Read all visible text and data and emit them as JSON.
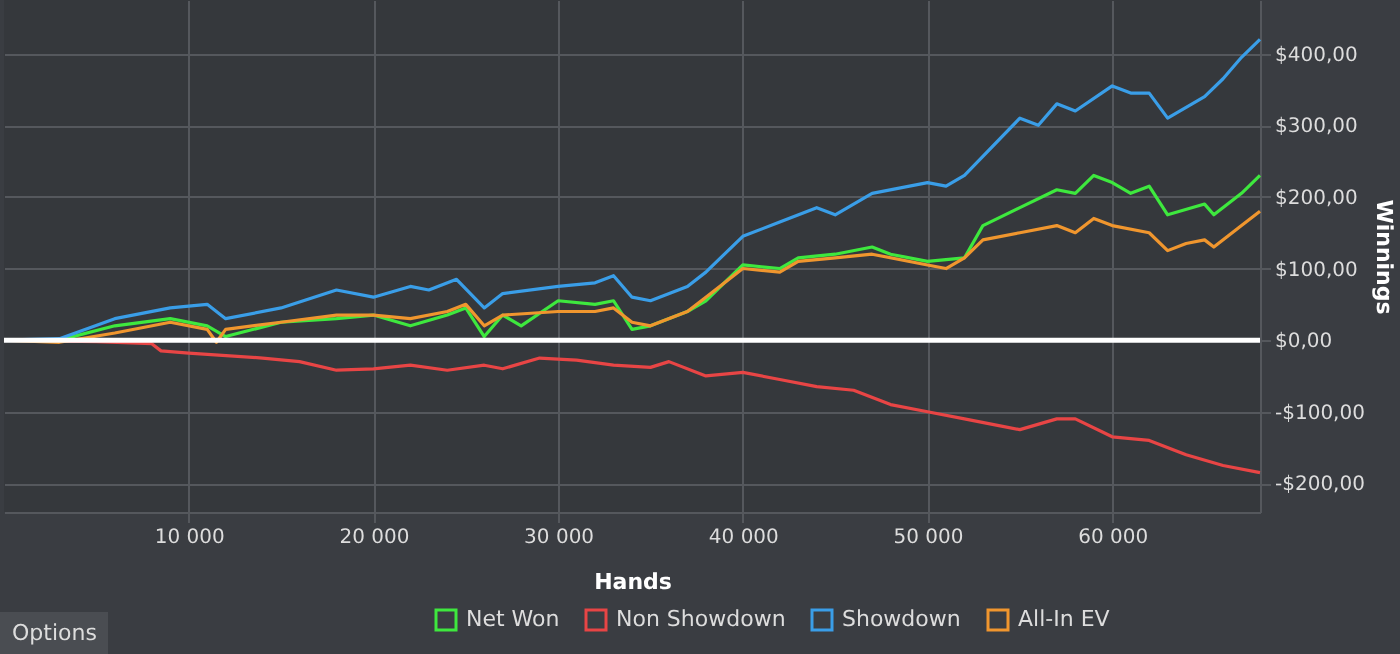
{
  "chart_data": {
    "type": "line",
    "xlabel": "Hands",
    "ylabel": "Winnings",
    "annotations": [
      "Options"
    ],
    "xlim": [
      0,
      68000
    ],
    "xticks": [
      {
        "value": 10000,
        "label": "10 000"
      },
      {
        "value": 20000,
        "label": "20 000"
      },
      {
        "value": 30000,
        "label": "30 000"
      },
      {
        "value": 40000,
        "label": "40 000"
      },
      {
        "value": 50000,
        "label": "50 000"
      },
      {
        "value": 60000,
        "label": "60 000"
      }
    ],
    "ylim": [
      -240,
      475
    ],
    "yticks": [
      {
        "value": -200,
        "label": "-$200,00"
      },
      {
        "value": -100,
        "label": "-$100,00"
      },
      {
        "value": 0,
        "label": "$0,00"
      },
      {
        "value": 100,
        "label": "$100,00"
      },
      {
        "value": 200,
        "label": "$200,00"
      },
      {
        "value": 300,
        "label": "$300,00"
      },
      {
        "value": 400,
        "label": "$400,00"
      }
    ],
    "grid": true,
    "legend": "bottom",
    "ref_lines": [
      {
        "axis": "y",
        "value": 0,
        "color": "#ffffff"
      }
    ],
    "series": [
      {
        "name": "Net Won",
        "color": "#3ee83e",
        "x": [
          0,
          3000,
          6000,
          9000,
          11000,
          12000,
          15000,
          18000,
          20000,
          22000,
          24000,
          25000,
          26000,
          27000,
          28000,
          30000,
          32000,
          33000,
          34000,
          35000,
          37000,
          38000,
          40000,
          42000,
          43000,
          45000,
          47000,
          48000,
          50000,
          52000,
          53000,
          55000,
          57000,
          58000,
          59000,
          60000,
          61000,
          62000,
          63000,
          65000,
          65500,
          67000,
          68000
        ],
        "values": [
          0,
          0,
          20,
          30,
          20,
          5,
          25,
          30,
          35,
          20,
          35,
          45,
          5,
          35,
          20,
          55,
          50,
          55,
          15,
          20,
          40,
          55,
          105,
          100,
          115,
          120,
          130,
          120,
          110,
          115,
          160,
          185,
          210,
          205,
          230,
          220,
          205,
          215,
          175,
          190,
          175,
          205,
          230
        ]
      },
      {
        "name": "Non Showdown",
        "color": "#e84545",
        "x": [
          0,
          5000,
          8000,
          8500,
          10000,
          14000,
          16000,
          18000,
          20000,
          22000,
          24000,
          26000,
          27000,
          29000,
          31000,
          33000,
          35000,
          36000,
          38000,
          40000,
          42000,
          44000,
          46000,
          48000,
          50000,
          52000,
          54000,
          55000,
          57000,
          58000,
          60000,
          62000,
          64000,
          66000,
          68000
        ],
        "values": [
          0,
          -2,
          -5,
          -15,
          -18,
          -25,
          -30,
          -42,
          -40,
          -35,
          -42,
          -35,
          -40,
          -25,
          -28,
          -35,
          -38,
          -30,
          -50,
          -45,
          -55,
          -65,
          -70,
          -90,
          -100,
          -110,
          -120,
          -125,
          -110,
          -110,
          -135,
          -140,
          -160,
          -175,
          -185
        ]
      },
      {
        "name": "Showdown",
        "color": "#3a9ee8",
        "x": [
          0,
          3000,
          6000,
          9000,
          11000,
          12000,
          15000,
          18000,
          20000,
          22000,
          23000,
          24500,
          26000,
          27000,
          30000,
          32000,
          33000,
          34000,
          35000,
          37000,
          38000,
          40000,
          42000,
          44000,
          45000,
          47000,
          50000,
          51000,
          52000,
          55000,
          56000,
          57000,
          58000,
          60000,
          61000,
          62000,
          63000,
          64000,
          65000,
          66000,
          67000,
          68000
        ],
        "values": [
          0,
          2,
          30,
          45,
          50,
          30,
          45,
          70,
          60,
          75,
          70,
          85,
          45,
          65,
          75,
          80,
          90,
          60,
          55,
          75,
          95,
          145,
          165,
          185,
          175,
          205,
          220,
          215,
          230,
          310,
          300,
          330,
          320,
          355,
          345,
          345,
          310,
          325,
          340,
          365,
          395,
          420
        ]
      },
      {
        "name": "All-In EV",
        "color": "#f0962e",
        "x": [
          0,
          3000,
          6000,
          9000,
          11000,
          11500,
          12000,
          15000,
          18000,
          20000,
          22000,
          24000,
          25000,
          26000,
          27000,
          30000,
          32000,
          33000,
          34000,
          35000,
          37000,
          38000,
          40000,
          42000,
          43000,
          45000,
          47000,
          50000,
          51000,
          52000,
          53000,
          55000,
          57000,
          58000,
          59000,
          60000,
          62000,
          63000,
          64000,
          65000,
          65500,
          67000,
          68000
        ],
        "values": [
          0,
          -3,
          10,
          25,
          15,
          -3,
          15,
          25,
          35,
          35,
          30,
          40,
          50,
          20,
          35,
          40,
          40,
          45,
          25,
          20,
          40,
          60,
          100,
          95,
          110,
          115,
          120,
          105,
          100,
          115,
          140,
          150,
          160,
          150,
          170,
          160,
          150,
          125,
          135,
          140,
          130,
          160,
          180
        ]
      }
    ]
  }
}
